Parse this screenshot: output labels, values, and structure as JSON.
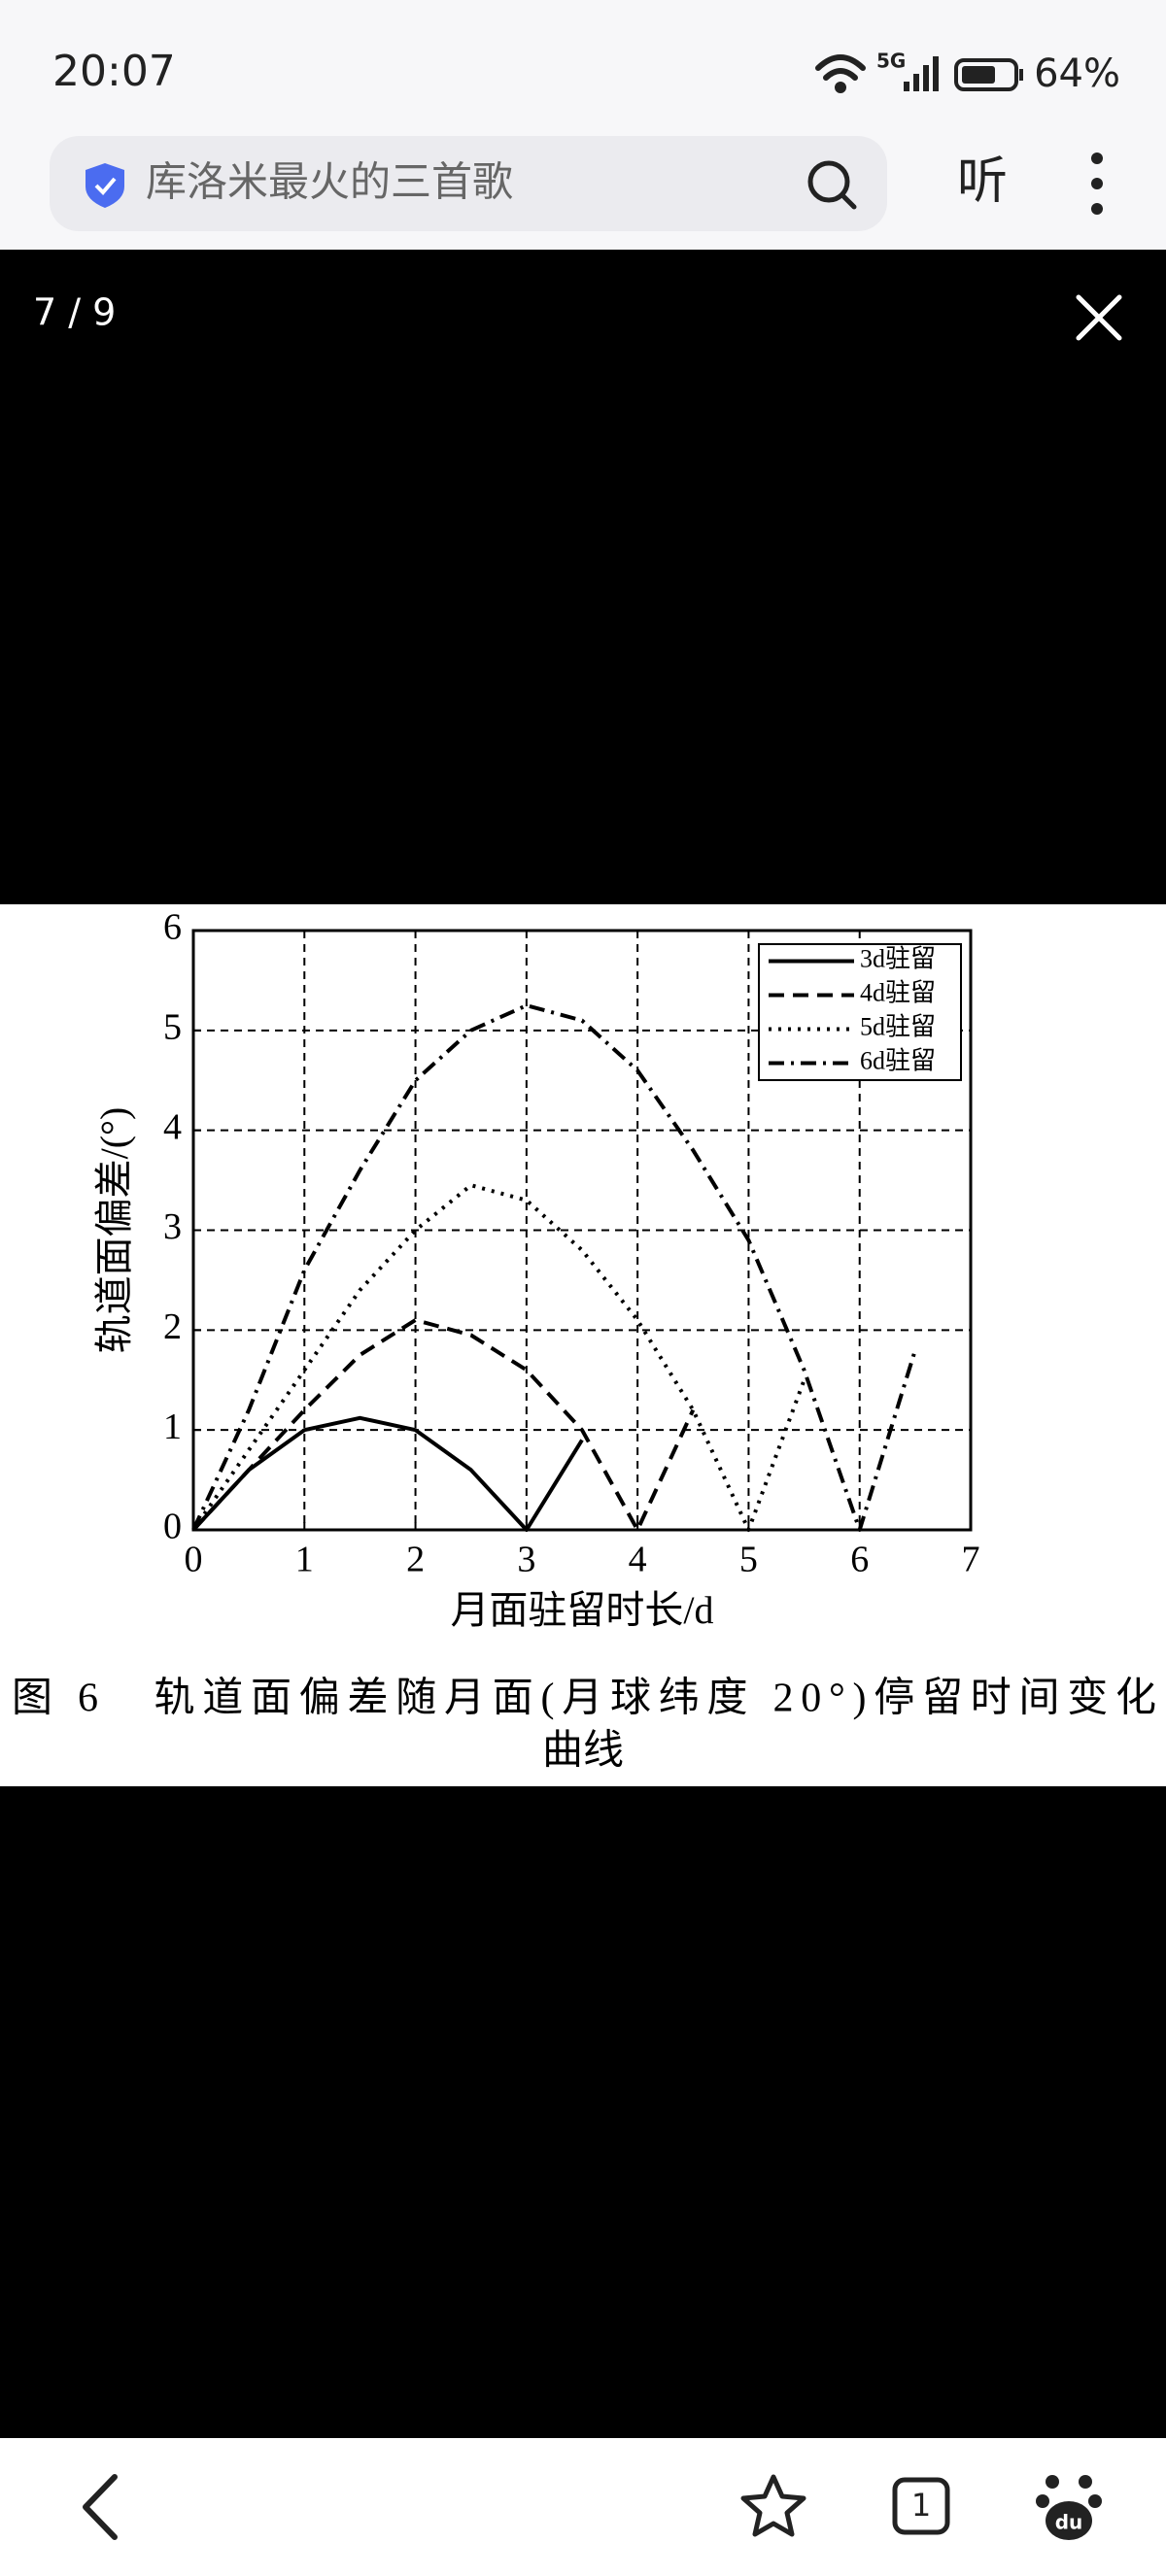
{
  "status_bar": {
    "time": "20:07",
    "network": "5G",
    "battery": "64%"
  },
  "search_bar": {
    "query": "库洛米最火的三首歌",
    "listen_button": "听"
  },
  "viewer": {
    "counter": "7 / 9"
  },
  "chart_data": {
    "type": "line",
    "xlabel": "月面驻留时长/d",
    "ylabel": "轨道面偏差/(°)",
    "xlim": [
      0,
      7
    ],
    "xticks": [
      0,
      1,
      2,
      3,
      4,
      5,
      6,
      7
    ],
    "ylim": [
      0,
      6
    ],
    "yticks": [
      0,
      1,
      2,
      3,
      4,
      5,
      6
    ],
    "grid": true,
    "legend": "upper right",
    "series": [
      {
        "name": "3d驻留",
        "color": "#000000",
        "dash": "solid",
        "x": [
          0,
          0.5,
          1,
          1.5,
          2,
          2.5,
          3,
          3.5
        ],
        "values": [
          0,
          0.6,
          1.0,
          1.12,
          1.0,
          0.6,
          0,
          0.9
        ]
      },
      {
        "name": "4d驻留",
        "color": "#000000",
        "dash": "dashed",
        "x": [
          0,
          0.5,
          1,
          1.5,
          2,
          2.5,
          3,
          3.5,
          4,
          4.5
        ],
        "values": [
          0,
          0.6,
          1.2,
          1.75,
          2.1,
          1.95,
          1.6,
          1.0,
          0,
          1.2
        ]
      },
      {
        "name": "5d驻留",
        "color": "#000000",
        "dash": "dotted",
        "x": [
          0,
          0.5,
          1,
          1.5,
          2,
          2.5,
          3,
          3.5,
          4,
          4.5,
          5,
          5.5
        ],
        "values": [
          0,
          0.8,
          1.6,
          2.4,
          3.0,
          3.45,
          3.3,
          2.8,
          2.1,
          1.2,
          0,
          1.5
        ]
      },
      {
        "name": "6d驻留",
        "color": "#000000",
        "dash": "dashdot",
        "x": [
          0,
          0.5,
          1,
          1.5,
          2,
          2.5,
          3,
          3.5,
          4,
          4.5,
          5,
          5.5,
          6,
          6.5
        ],
        "values": [
          0,
          1.2,
          2.6,
          3.6,
          4.5,
          5.0,
          5.25,
          5.1,
          4.6,
          3.8,
          2.9,
          1.6,
          0,
          1.8
        ]
      }
    ],
    "caption": [
      "图 6　轨道面偏差随月面(月球纬度 20°)停留时间变化",
      "曲线"
    ]
  },
  "bottom_nav": {
    "tab_count": "1",
    "logo": "du"
  }
}
